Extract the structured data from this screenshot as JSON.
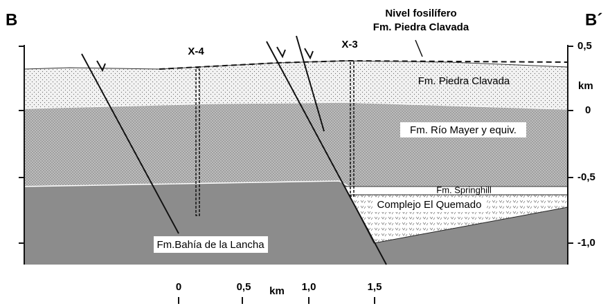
{
  "header": {
    "left": "B",
    "right": "B´",
    "note_line1": "Nivel fosilífero",
    "note_line2": "Fm. Piedra Clavada"
  },
  "wells": [
    "X-4",
    "X-3"
  ],
  "units": {
    "piedra_clavada": "Fm. Piedra Clavada",
    "rio_mayer": "Fm. Río Mayer y equiv.",
    "springhill": "Fm. Springhill",
    "quemado": "Complejo El Quemado",
    "bahia": "Fm.Bahía de la Lancha"
  },
  "vertical_scale": {
    "unit": "km",
    "labels": [
      "0,5",
      "0",
      "-0,5",
      "-1,0"
    ]
  },
  "horizontal_scale": {
    "unit": "km",
    "labels": [
      "0",
      "0,5",
      "1,0",
      "1,5"
    ]
  }
}
